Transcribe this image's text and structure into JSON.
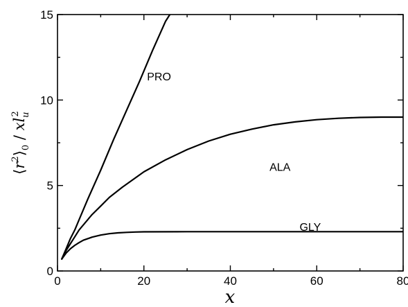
{
  "chart_data": {
    "type": "line",
    "title": "",
    "xlabel": "x",
    "ylabel": "⟨r²⟩₀ / x l_u²",
    "ylabel_parts": {
      "bracket_open": "⟨",
      "r": "r",
      "r_sup": "2",
      "bracket_close": "⟩",
      "r_sub": "0",
      "slash": " / ",
      "x": "x",
      "l": "l",
      "l_sub": "u",
      "l_sup": "2"
    },
    "xlim": [
      0,
      80
    ],
    "ylim": [
      0,
      15
    ],
    "xticks": [
      0,
      20,
      40,
      60,
      80
    ],
    "yticks": [
      0,
      5,
      10,
      15
    ],
    "xtick_labels": [
      "0",
      "20",
      "40",
      "60",
      "80"
    ],
    "ytick_labels": [
      "0",
      "5",
      "10",
      "15"
    ],
    "grid": false,
    "legend": "none",
    "series": [
      {
        "name": "PRO",
        "label_at": [
          23.5,
          11.4
        ],
        "x": [
          1,
          2,
          3,
          4,
          5,
          7,
          10,
          13,
          16,
          19,
          22,
          25,
          26
        ],
        "y": [
          0.7,
          1.3,
          1.9,
          2.4,
          3.0,
          4.2,
          5.9,
          7.7,
          9.4,
          11.1,
          12.9,
          14.6,
          15.0
        ]
      },
      {
        "name": "ALA",
        "label_at": [
          51.5,
          6.1
        ],
        "x": [
          1,
          2,
          3,
          4,
          5,
          6,
          8,
          10,
          12,
          15,
          20,
          25,
          30,
          35,
          40,
          45,
          50,
          55,
          60,
          65,
          70,
          75,
          80
        ],
        "y": [
          0.7,
          1.2,
          1.6,
          2.0,
          2.4,
          2.7,
          3.3,
          3.8,
          4.3,
          4.9,
          5.8,
          6.5,
          7.1,
          7.6,
          8.0,
          8.3,
          8.55,
          8.72,
          8.85,
          8.93,
          8.98,
          9.0,
          9.0
        ]
      },
      {
        "name": "GLY",
        "label_at": [
          58.5,
          2.6
        ],
        "x": [
          1,
          2,
          3,
          4,
          5,
          6,
          8,
          10,
          12,
          14,
          16,
          18,
          20,
          30,
          40,
          50,
          60,
          70,
          80
        ],
        "y": [
          0.7,
          1.05,
          1.3,
          1.5,
          1.66,
          1.8,
          1.98,
          2.1,
          2.18,
          2.23,
          2.26,
          2.28,
          2.29,
          2.3,
          2.3,
          2.3,
          2.3,
          2.3,
          2.3
        ]
      }
    ]
  }
}
